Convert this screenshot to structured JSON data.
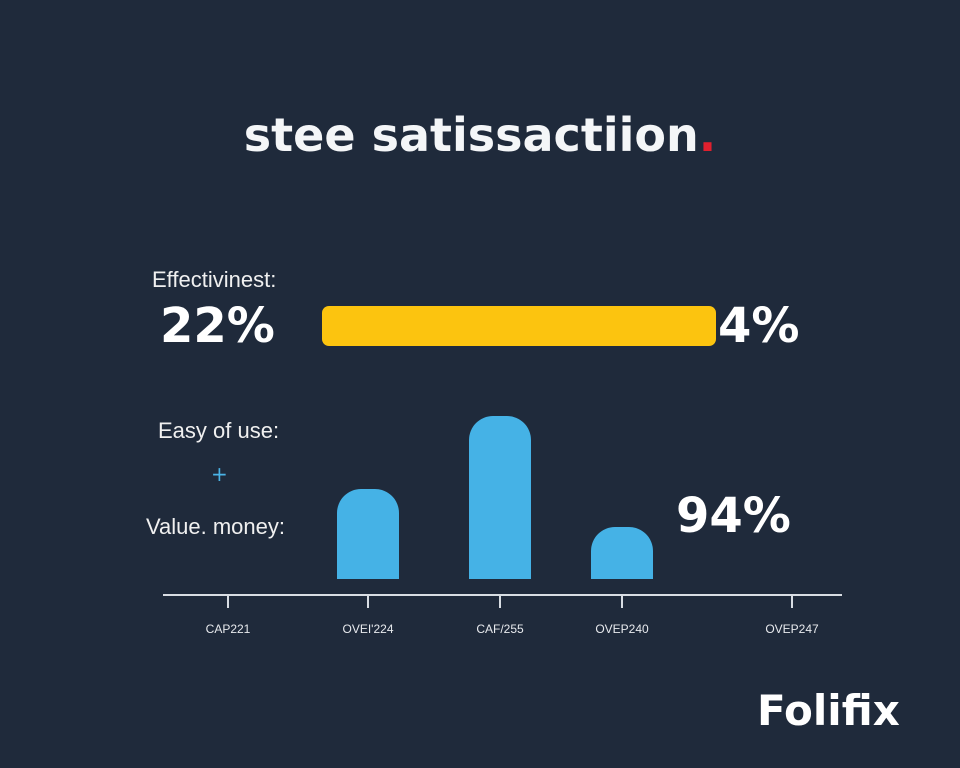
{
  "title": {
    "text": "stee satissactiion",
    "dot": "."
  },
  "colors": {
    "background": "#1f2a3b",
    "yellow": "#fcc40f",
    "blue": "#45b2e6",
    "accent_dot": "#e0202e"
  },
  "effectiveness": {
    "label": "Effectivinest:",
    "left_value": "22%",
    "right_value": "4%"
  },
  "ease_label": "Easy of use:",
  "plus": "+",
  "value_label": "Value. money:",
  "value_percent": "94%",
  "brand": "Folifix",
  "chart_data": [
    {
      "type": "bar",
      "orientation": "horizontal",
      "series": [
        {
          "name": "Effectivinest",
          "values": [
            100
          ]
        }
      ],
      "xlim": [
        0,
        100
      ]
    },
    {
      "type": "bar",
      "categories": [
        "CAP221",
        "OVEI'224",
        "CAF/255",
        "OVEP240",
        "OVEP247"
      ],
      "values": [
        null,
        55,
        100,
        32,
        null
      ],
      "ylim": [
        0,
        100
      ],
      "xlabel": "",
      "ylabel": "",
      "grid": false
    }
  ]
}
